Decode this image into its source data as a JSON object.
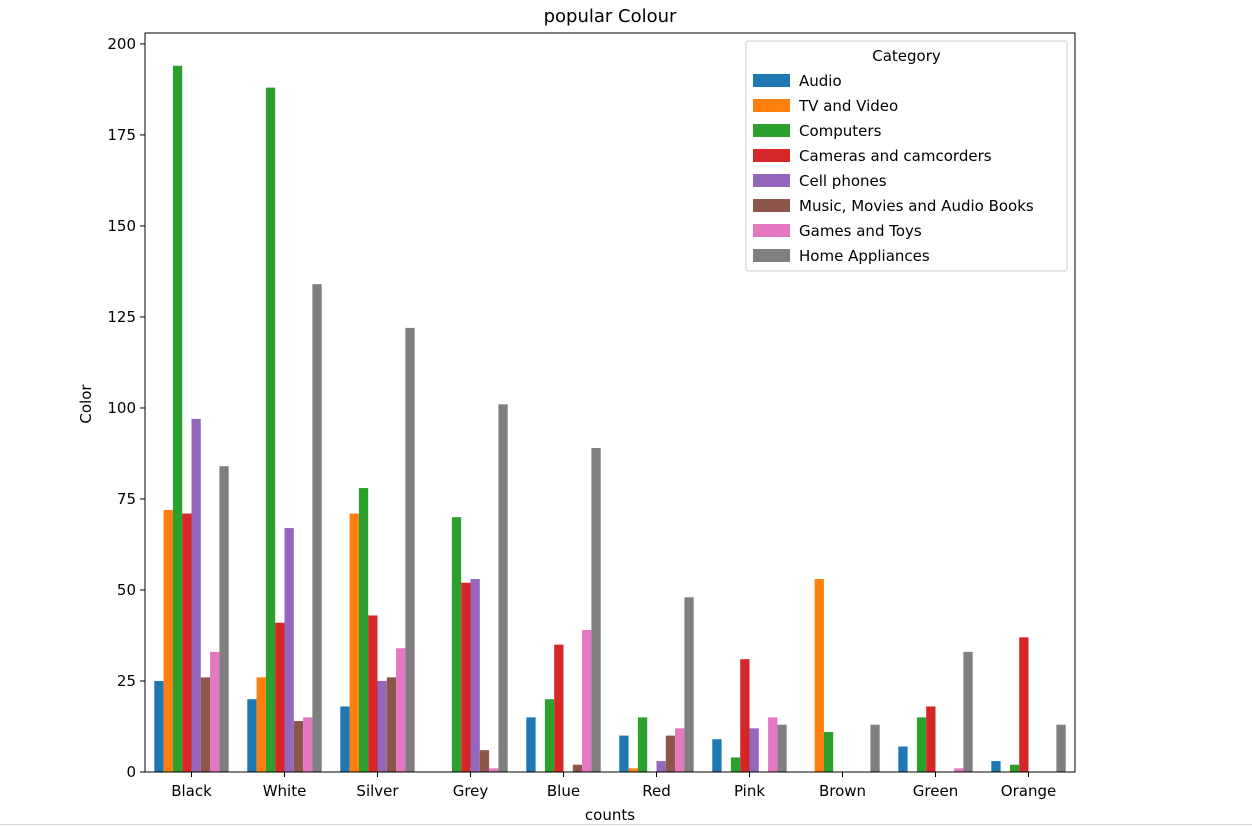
{
  "chart_data": {
    "type": "bar",
    "title": "popular Colour",
    "xlabel": "counts",
    "ylabel": "Color",
    "categories": [
      "Black",
      "White",
      "Silver",
      "Grey",
      "Blue",
      "Red",
      "Pink",
      "Brown",
      "Green",
      "Orange"
    ],
    "ylim": [
      0,
      203
    ],
    "yticks": [
      0,
      25,
      50,
      75,
      100,
      125,
      150,
      175,
      200
    ],
    "grid": false,
    "legend": {
      "title": "Category",
      "placement": "top-right"
    },
    "series": [
      {
        "name": "Audio",
        "color": "#1f77b4",
        "values": [
          25,
          20,
          18,
          0,
          15,
          10,
          9,
          0,
          7,
          3
        ]
      },
      {
        "name": "TV and Video",
        "color": "#ff7f0e",
        "values": [
          72,
          26,
          71,
          0,
          0,
          1,
          0,
          53,
          0,
          0
        ]
      },
      {
        "name": "Computers",
        "color": "#2ca02c",
        "values": [
          194,
          188,
          78,
          70,
          20,
          15,
          4,
          11,
          15,
          2
        ]
      },
      {
        "name": "Cameras and camcorders",
        "color": "#d62728",
        "values": [
          71,
          41,
          43,
          52,
          35,
          0,
          31,
          0,
          18,
          37
        ]
      },
      {
        "name": "Cell phones",
        "color": "#9467bd",
        "values": [
          97,
          67,
          25,
          53,
          0,
          3,
          12,
          0,
          0,
          0
        ]
      },
      {
        "name": "Music, Movies and Audio Books",
        "color": "#8c564b",
        "values": [
          26,
          14,
          26,
          6,
          2,
          10,
          0,
          0,
          0,
          0
        ]
      },
      {
        "name": "Games and Toys",
        "color": "#e377c2",
        "values": [
          33,
          15,
          34,
          1,
          39,
          12,
          15,
          0,
          1,
          0
        ]
      },
      {
        "name": "Home Appliances",
        "color": "#7f7f7f",
        "values": [
          84,
          134,
          122,
          101,
          89,
          48,
          13,
          13,
          33,
          13
        ]
      }
    ]
  }
}
